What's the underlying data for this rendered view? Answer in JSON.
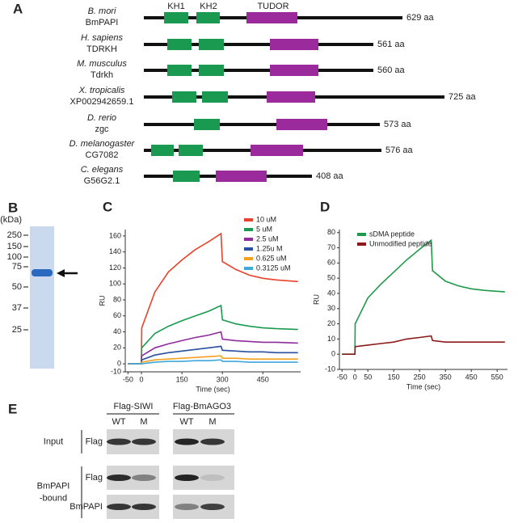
{
  "panel_labels": [
    "A",
    "B",
    "C",
    "D",
    "E"
  ],
  "panel_a": {
    "domain_names": [
      "KH1",
      "KH2",
      "TUDOR"
    ],
    "proteins": [
      {
        "species": "B. mori",
        "name": "BmPAPI",
        "length": "629 aa"
      },
      {
        "species": "H. sapiens",
        "name": "TDRKH",
        "length": "561 aa"
      },
      {
        "species": "M. musculus",
        "name": "Tdrkh",
        "length": "560 aa"
      },
      {
        "species": "X. tropicalis",
        "name": "XP002942659.1",
        "length": "725 aa"
      },
      {
        "species": "D. rerio",
        "name": "zgc",
        "length": "573 aa"
      },
      {
        "species": "D. melanogaster",
        "name": "CG7082",
        "length": "576 aa"
      },
      {
        "species": "C. elegans",
        "name": "G56G2.1",
        "length": "408 aa"
      }
    ]
  },
  "panel_b": {
    "unit": "(kDa)",
    "markers": [
      250,
      150,
      100,
      75,
      50,
      37,
      25
    ]
  },
  "chart_data": [
    {
      "type": "line",
      "xlabel": "Time (sec)",
      "ylabel": "RU",
      "x": [
        -50,
        0,
        1,
        50,
        100,
        150,
        200,
        250,
        295,
        300,
        350,
        400,
        450,
        500,
        580
      ],
      "series": [
        {
          "name": "10 uM",
          "color": "#e8412c",
          "values": [
            0,
            0,
            45,
            90,
            115,
            130,
            143,
            153,
            163,
            128,
            118,
            111,
            107,
            105,
            103
          ]
        },
        {
          "name": "5 uM",
          "color": "#1a9a50",
          "values": [
            0,
            0,
            20,
            38,
            47,
            54,
            60,
            66,
            73,
            55,
            50,
            47,
            45,
            44,
            43
          ]
        },
        {
          "name": "2.5 uM",
          "color": "#8e2c9c",
          "values": [
            0,
            0,
            10,
            20,
            25,
            29,
            33,
            36,
            40,
            31,
            29,
            28,
            27,
            27,
            26
          ]
        },
        {
          "name": "1.25u M",
          "color": "#2a4fa0",
          "values": [
            0,
            0,
            5,
            11,
            14,
            16,
            18,
            20,
            22,
            17,
            16,
            15,
            15,
            14,
            14
          ]
        },
        {
          "name": "0.625 uM",
          "color": "#f5a020",
          "values": [
            0,
            0,
            2,
            5,
            6,
            7,
            8,
            9,
            10,
            7,
            7,
            6,
            6,
            6,
            6
          ]
        },
        {
          "name": "0.3125 uM",
          "color": "#3fa8d8",
          "values": [
            0,
            0,
            0,
            2,
            3,
            3,
            4,
            4,
            5,
            3,
            3,
            2,
            2,
            2,
            2
          ]
        }
      ],
      "xlim": [
        -60,
        590
      ],
      "xticks": [
        -50,
        0,
        150,
        300,
        450
      ],
      "ylim": [
        -10,
        168
      ],
      "yticks": [
        -10,
        0,
        20,
        40,
        60,
        80,
        100,
        120,
        140,
        160
      ],
      "legend": "upper right"
    },
    {
      "type": "line",
      "xlabel": "Time (sec)",
      "ylabel": "RU",
      "x": [
        -50,
        0,
        1,
        50,
        100,
        150,
        200,
        250,
        295,
        300,
        350,
        400,
        450,
        500,
        580
      ],
      "series": [
        {
          "name": "sDMA peptide",
          "color": "#1f9a4a",
          "values": [
            0,
            0,
            20,
            37,
            46,
            54,
            62,
            69,
            75,
            55,
            48,
            45,
            43,
            42,
            41
          ]
        },
        {
          "name": "Unmodified peptide",
          "color": "#8b1a1a",
          "values": [
            0,
            0,
            5,
            6,
            7,
            8,
            10,
            11,
            12,
            9,
            8,
            8,
            8,
            8,
            8
          ]
        }
      ],
      "xlim": [
        -60,
        590
      ],
      "xticks": [
        -50,
        0,
        50,
        150,
        250,
        350,
        450,
        550
      ],
      "ylim": [
        -10,
        82
      ],
      "yticks": [
        -10,
        0,
        10,
        20,
        30,
        40,
        50,
        60,
        70,
        80
      ],
      "legend": "upper left"
    }
  ],
  "panel_e": {
    "constructs": [
      "Flag-SIWI",
      "Flag-BmAGO3"
    ],
    "lanes": [
      "WT",
      "M",
      "WT",
      "M"
    ],
    "groups": [
      {
        "label": [
          "Input"
        ],
        "probes": [
          "Flag"
        ]
      },
      {
        "label": [
          "BmPAPI",
          "-bound"
        ],
        "probes": [
          "Flag",
          "BmPAPI"
        ]
      }
    ]
  }
}
